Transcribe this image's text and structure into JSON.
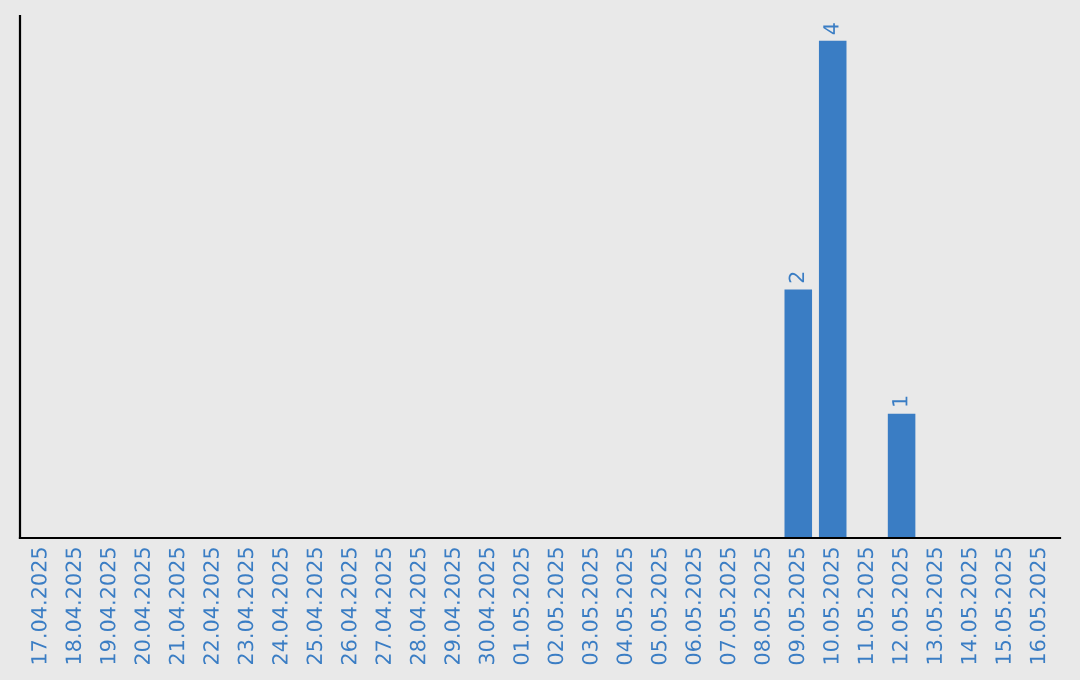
{
  "chart_data": {
    "type": "bar",
    "categories": [
      "17.04.2025",
      "18.04.2025",
      "19.04.2025",
      "20.04.2025",
      "21.04.2025",
      "22.04.2025",
      "23.04.2025",
      "24.04.2025",
      "25.04.2025",
      "26.04.2025",
      "27.04.2025",
      "28.04.2025",
      "29.04.2025",
      "30.04.2025",
      "01.05.2025",
      "02.05.2025",
      "03.05.2025",
      "04.05.2025",
      "05.05.2025",
      "06.05.2025",
      "07.05.2025",
      "08.05.2025",
      "09.05.2025",
      "10.05.2025",
      "11.05.2025",
      "12.05.2025",
      "13.05.2025",
      "14.05.2025",
      "15.05.2025",
      "16.05.2025"
    ],
    "values": [
      null,
      null,
      null,
      null,
      null,
      null,
      null,
      null,
      null,
      null,
      null,
      null,
      null,
      null,
      null,
      null,
      null,
      null,
      null,
      null,
      null,
      null,
      2,
      4,
      null,
      1,
      null,
      null,
      null,
      null
    ],
    "value_labels": [
      null,
      null,
      null,
      null,
      null,
      null,
      null,
      null,
      null,
      null,
      null,
      null,
      null,
      null,
      null,
      null,
      null,
      null,
      null,
      null,
      null,
      null,
      "2",
      "4",
      null,
      "1",
      null,
      null,
      null,
      null
    ],
    "color": "#3a7dc4",
    "tick_labels": "x",
    "grid": false,
    "legend": false
  }
}
